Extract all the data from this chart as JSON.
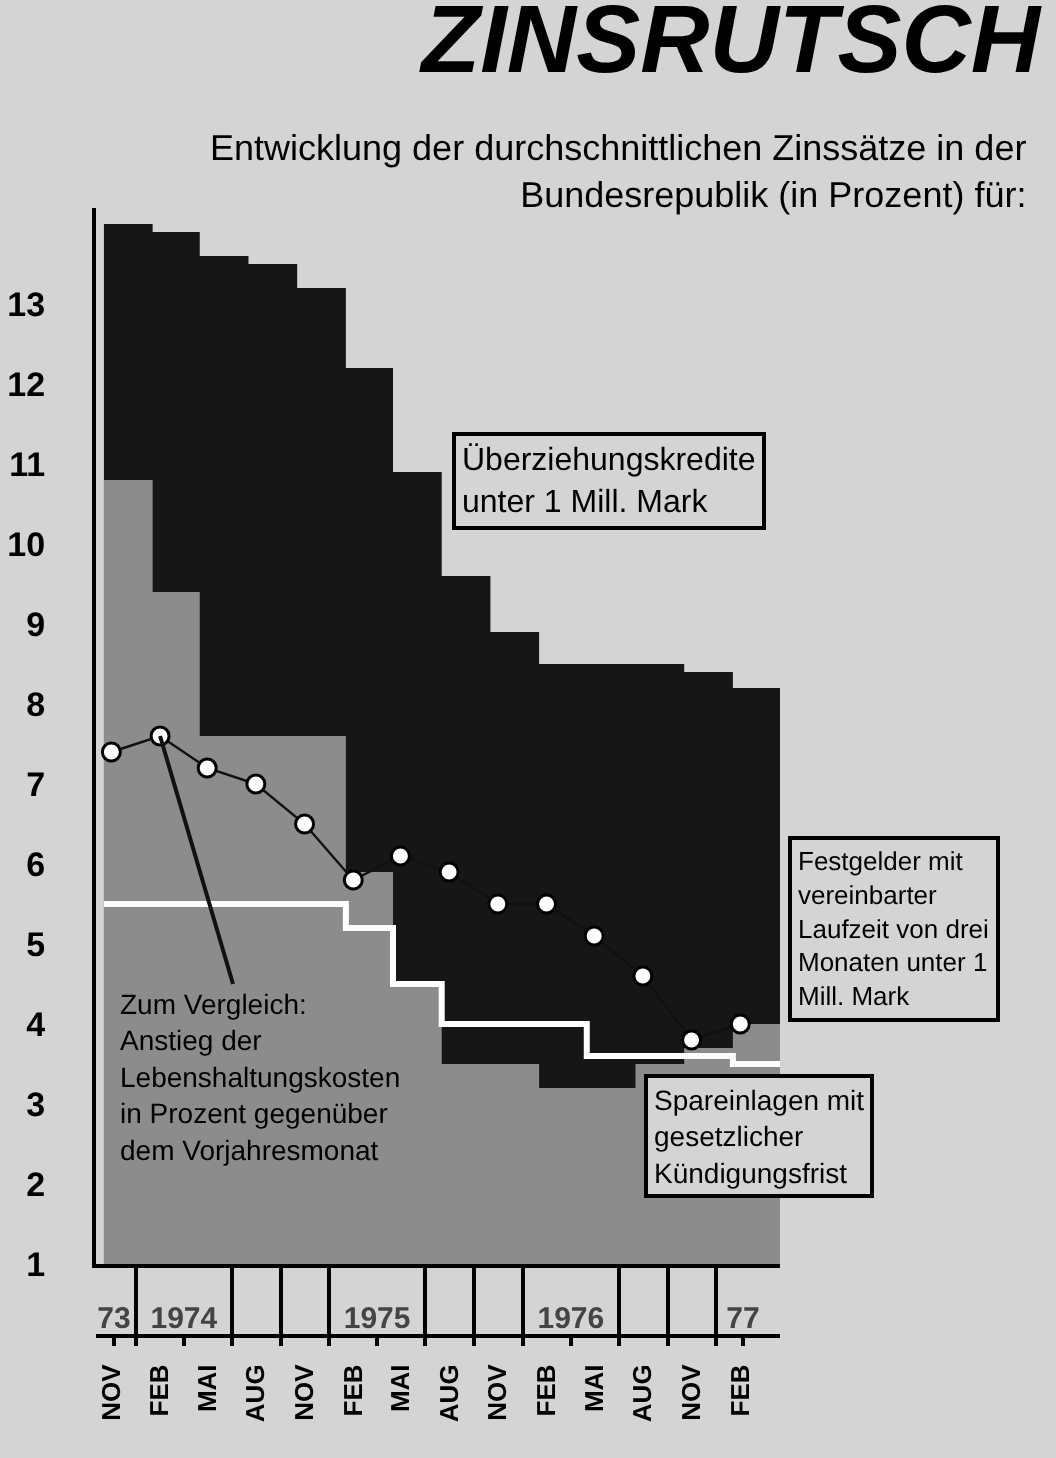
{
  "chart_data": {
    "type": "area",
    "title": "ZINSRUTSCH",
    "subtitle": "Entwicklung der durchschnittlichen Zinssätze in der Bundesrepublik (in Prozent) für:",
    "x": [
      "1973-11",
      "1974-02",
      "1974-05",
      "1974-08",
      "1974-11",
      "1975-02",
      "1975-05",
      "1975-08",
      "1975-11",
      "1976-02",
      "1976-05",
      "1976-08",
      "1976-11",
      "1977-02",
      "1977-05"
    ],
    "series": [
      {
        "name": "Überziehungskredite unter 1 Mill. Mark",
        "color": "#161616",
        "values": [
          14.0,
          13.9,
          13.6,
          13.5,
          13.2,
          12.2,
          10.9,
          9.6,
          8.9,
          8.5,
          8.5,
          8.5,
          8.4,
          8.2,
          8.2
        ]
      },
      {
        "name": "Festgelder mit vereinbarter Laufzeit von drei Monaten unter 1 Mill. Mark",
        "color": "#8c8c8c",
        "values": [
          10.8,
          9.4,
          7.6,
          7.6,
          7.6,
          5.9,
          4.5,
          3.5,
          3.5,
          3.2,
          3.2,
          3.5,
          3.7,
          4.0,
          4.0
        ]
      },
      {
        "name": "Spareinlagen mit gesetzlicher Kündigungsfrist",
        "type": "step",
        "color": "#ffffff",
        "values": [
          5.5,
          5.5,
          5.5,
          5.5,
          5.5,
          5.2,
          4.5,
          4.0,
          4.0,
          4.0,
          3.6,
          3.6,
          3.6,
          3.5,
          3.5
        ]
      },
      {
        "name": "Zum Vergleich: Anstieg der Lebenshaltungskosten in Prozent gegenüber dem Vorjahresmonat",
        "type": "line",
        "marker": "circle",
        "color": "#ffffff",
        "x": [
          "1973-11-15",
          "1974-02-15",
          "1974-05-15",
          "1974-08-15",
          "1974-11-15",
          "1975-02-15",
          "1975-05-15",
          "1975-08-15",
          "1975-11-15",
          "1976-02-15",
          "1976-05-15",
          "1976-08-15",
          "1976-11-15",
          "1977-02-15"
        ],
        "values": [
          7.4,
          7.6,
          7.2,
          7.0,
          6.5,
          5.8,
          6.1,
          5.9,
          5.5,
          5.5,
          5.1,
          4.6,
          3.8,
          4.0
        ]
      }
    ],
    "xlim": [
      "1973-10-17",
      "1977-05-01"
    ],
    "xticks": [
      {
        "value": "1973-11-15",
        "label": "NOV"
      },
      {
        "value": "1974-02-15",
        "label": "FEB"
      },
      {
        "value": "1974-05-15",
        "label": "MAI"
      },
      {
        "value": "1974-08-15",
        "label": "AUG"
      },
      {
        "value": "1974-11-15",
        "label": "NOV"
      },
      {
        "value": "1975-02-15",
        "label": "FEB"
      },
      {
        "value": "1975-05-15",
        "label": "MAI"
      },
      {
        "value": "1975-08-15",
        "label": "AUG"
      },
      {
        "value": "1975-11-15",
        "label": "NOV"
      },
      {
        "value": "1976-02-15",
        "label": "FEB"
      },
      {
        "value": "1976-05-15",
        "label": "MAI"
      },
      {
        "value": "1976-08-15",
        "label": "AUG"
      },
      {
        "value": "1976-11-15",
        "label": "NOV"
      },
      {
        "value": "1977-02-15",
        "label": "FEB"
      }
    ],
    "x2lim": [
      "1973-10-17",
      "1977-05-01"
    ],
    "x2ticks": [
      {
        "value": "1973-11-20",
        "label": "73"
      },
      {
        "value": "1974-01-01",
        "label": null
      },
      {
        "value": "1974-04-01",
        "label": "1974"
      },
      {
        "value": "1974-07-01",
        "label": null
      },
      {
        "value": "1974-10-01",
        "label": null
      },
      {
        "value": "1975-01-01",
        "label": null
      },
      {
        "value": "1975-04-01",
        "label": "1975"
      },
      {
        "value": "1975-07-01",
        "label": null
      },
      {
        "value": "1975-10-01",
        "label": null
      },
      {
        "value": "1976-01-01",
        "label": null
      },
      {
        "value": "1976-04-01",
        "label": "1976"
      },
      {
        "value": "1976-07-01",
        "label": null
      },
      {
        "value": "1976-10-01",
        "label": null
      },
      {
        "value": "1977-01-01",
        "label": null
      },
      {
        "value": "1977-02-20",
        "label": "77"
      }
    ],
    "ylim": [
      1,
      14.2
    ],
    "yticks": [
      1,
      2,
      3,
      4,
      5,
      6,
      7,
      8,
      9,
      10,
      11,
      12,
      13
    ]
  }
}
